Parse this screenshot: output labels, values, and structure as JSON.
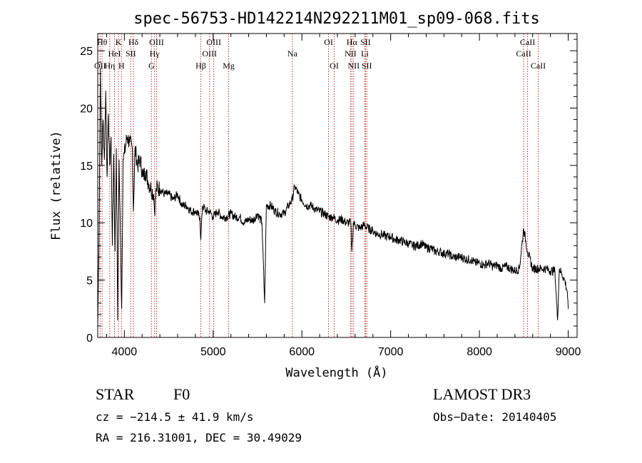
{
  "chart_data": {
    "type": "line",
    "title": "spec-56753-HD142214N292211M01_sp09-068.fits",
    "xlabel": "Wavelength (Å)",
    "ylabel": "Flux (relative)",
    "xlim": [
      3700,
      9100
    ],
    "ylim": [
      0,
      26.5
    ],
    "xticks": [
      4000,
      5000,
      6000,
      7000,
      8000,
      9000
    ],
    "yticks": [
      0,
      5,
      10,
      15,
      20,
      25
    ],
    "xtick_labels": [
      "4000",
      "5000",
      "6000",
      "7000",
      "8000",
      "9000"
    ],
    "ytick_labels": [
      "0",
      "5",
      "10",
      "15",
      "20",
      "25"
    ],
    "series": [
      {
        "name": "flux",
        "x": [
          3700,
          3715,
          3730,
          3745,
          3760,
          3775,
          3790,
          3805,
          3820,
          3835,
          3850,
          3865,
          3880,
          3895,
          3910,
          3925,
          3940,
          3955,
          3970,
          3985,
          4000,
          4030,
          4060,
          4090,
          4102,
          4120,
          4150,
          4180,
          4210,
          4240,
          4270,
          4300,
          4330,
          4340,
          4360,
          4400,
          4450,
          4500,
          4550,
          4600,
          4650,
          4700,
          4750,
          4800,
          4850,
          4861,
          4880,
          4920,
          4960,
          5000,
          5050,
          5100,
          5150,
          5200,
          5250,
          5300,
          5350,
          5400,
          5450,
          5500,
          5550,
          5580,
          5600,
          5650,
          5700,
          5750,
          5800,
          5850,
          5890,
          5920,
          5960,
          6000,
          6050,
          6100,
          6150,
          6200,
          6250,
          6300,
          6350,
          6400,
          6450,
          6500,
          6550,
          6563,
          6580,
          6600,
          6650,
          6700,
          6750,
          6800,
          6850,
          6900,
          6950,
          7000,
          7050,
          7100,
          7150,
          7200,
          7250,
          7300,
          7350,
          7400,
          7450,
          7500,
          7550,
          7600,
          7650,
          7700,
          7750,
          7800,
          7850,
          7900,
          7950,
          8000,
          8050,
          8100,
          8150,
          8200,
          8250,
          8300,
          8350,
          8400,
          8450,
          8498,
          8542,
          8600,
          8662,
          8700,
          8750,
          8800,
          8850,
          8880,
          8900,
          8930,
          8960,
          8990,
          9000
        ],
        "y": [
          1.0,
          9.0,
          23.5,
          15.0,
          19.0,
          15.5,
          21.5,
          14.0,
          19.5,
          15.0,
          17.5,
          8.0,
          16.0,
          7.5,
          16.5,
          1.5,
          15.5,
          9.0,
          2.5,
          15.5,
          16.0,
          17.5,
          17.0,
          16.5,
          11.0,
          16.5,
          15.0,
          15.5,
          14.0,
          14.5,
          13.5,
          13.0,
          12.5,
          11.0,
          13.0,
          13.0,
          12.5,
          12.5,
          12.0,
          12.5,
          11.5,
          11.5,
          11.0,
          11.0,
          10.5,
          8.5,
          11.5,
          11.0,
          11.0,
          10.5,
          11.0,
          10.5,
          10.5,
          10.8,
          10.5,
          10.5,
          10.0,
          10.3,
          10.2,
          10.8,
          10.0,
          3.0,
          11.5,
          11.5,
          11.0,
          10.8,
          10.8,
          11.5,
          12.0,
          13.2,
          12.5,
          12.0,
          11.5,
          11.5,
          11.2,
          11.0,
          10.8,
          10.5,
          10.5,
          10.2,
          10.3,
          10.0,
          10.0,
          7.5,
          10.0,
          9.8,
          9.5,
          9.8,
          9.5,
          9.3,
          9.0,
          9.0,
          8.8,
          8.8,
          8.5,
          8.5,
          8.3,
          8.2,
          8.0,
          8.0,
          8.2,
          7.8,
          7.8,
          7.5,
          7.5,
          7.3,
          7.3,
          7.0,
          7.0,
          7.0,
          6.8,
          6.8,
          6.5,
          6.5,
          6.3,
          6.5,
          6.2,
          6.3,
          6.0,
          6.2,
          6.0,
          5.8,
          6.0,
          9.5,
          7.5,
          6.0,
          6.0,
          6.0,
          6.0,
          5.8,
          5.8,
          1.5,
          6.0,
          5.5,
          5.0,
          4.0,
          2.5
        ]
      }
    ],
    "lines": [
      {
        "label": "OII",
        "x": 3727,
        "row": 3
      },
      {
        "label": "Hθ",
        "x": 3750,
        "row": 1
      },
      {
        "label": "Hη",
        "x": 3835,
        "row": 3
      },
      {
        "label": "HeI",
        "x": 3889,
        "row": 2
      },
      {
        "label": "K",
        "x": 3934,
        "row": 1
      },
      {
        "label": "H",
        "x": 3968,
        "row": 3
      },
      {
        "label": "SII",
        "x": 4072,
        "row": 2
      },
      {
        "label": "Hδ",
        "x": 4102,
        "row": 1
      },
      {
        "label": "G",
        "x": 4305,
        "row": 3
      },
      {
        "label": "Hγ",
        "x": 4340,
        "row": 2
      },
      {
        "label": "OIII",
        "x": 4363,
        "row": 1
      },
      {
        "label": "Hβ",
        "x": 4861,
        "row": 3
      },
      {
        "label": "OIII",
        "x": 4959,
        "row": 2
      },
      {
        "label": "OIII",
        "x": 5007,
        "row": 1
      },
      {
        "label": "Mg",
        "x": 5175,
        "row": 3
      },
      {
        "label": "Na",
        "x": 5893,
        "row": 2
      },
      {
        "label": "OI",
        "x": 6300,
        "row": 1
      },
      {
        "label": "OI",
        "x": 6364,
        "row": 3
      },
      {
        "label": "NII",
        "x": 6548,
        "row": 2
      },
      {
        "label": "Hα",
        "x": 6563,
        "row": 1
      },
      {
        "label": "NII",
        "x": 6583,
        "row": 3
      },
      {
        "label": "Li",
        "x": 6708,
        "row": 2
      },
      {
        "label": "SII",
        "x": 6716,
        "row": 1
      },
      {
        "label": "SII",
        "x": 6731,
        "row": 3
      },
      {
        "label": "CaII",
        "x": 8498,
        "row": 2
      },
      {
        "label": "CaII",
        "x": 8542,
        "row": 1
      },
      {
        "label": "CaII",
        "x": 8662,
        "row": 3
      }
    ]
  },
  "info": {
    "object_class": "STAR",
    "subclass": "F0",
    "survey": "LAMOST DR3",
    "cz": "cz = −214.5 ± 41.9 km/s",
    "obs_date": "Obs−Date: 20140405",
    "coords": "RA = 216.31001, DEC =  30.49029"
  }
}
